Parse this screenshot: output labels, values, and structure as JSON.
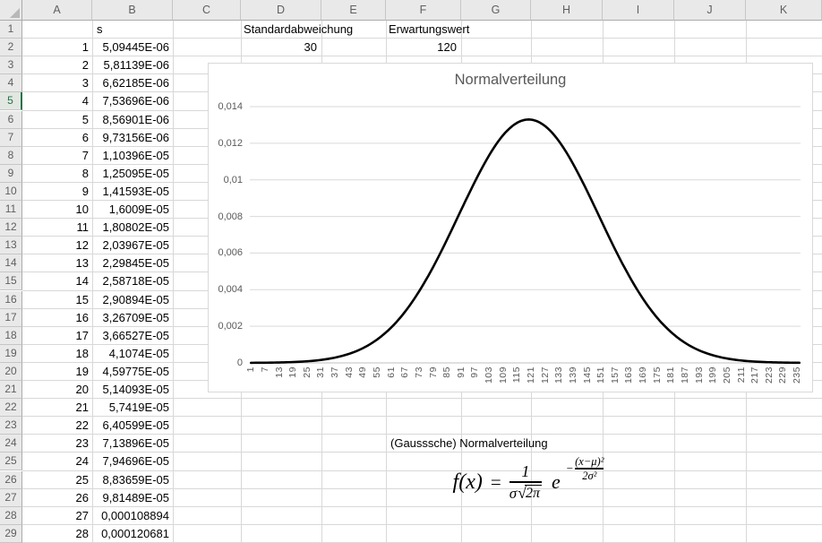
{
  "sheet": {
    "column_headers": [
      "A",
      "B",
      "C",
      "D",
      "E",
      "F",
      "G",
      "H",
      "I",
      "J",
      "K"
    ],
    "row_count": 29,
    "active_row": 5,
    "cells": {
      "b1": "s",
      "d1": "Standardabweichung",
      "d2": "30",
      "f1": "Erwartungswert",
      "f2": "120",
      "f24": "(Gausssche) Normalverteilung"
    },
    "data_rows": [
      {
        "x": "1",
        "s": "5,09445E-06"
      },
      {
        "x": "2",
        "s": "5,81139E-06"
      },
      {
        "x": "3",
        "s": "6,62185E-06"
      },
      {
        "x": "4",
        "s": "7,53696E-06"
      },
      {
        "x": "5",
        "s": "8,56901E-06"
      },
      {
        "x": "6",
        "s": "9,73156E-06"
      },
      {
        "x": "7",
        "s": "1,10396E-05"
      },
      {
        "x": "8",
        "s": "1,25095E-05"
      },
      {
        "x": "9",
        "s": "1,41593E-05"
      },
      {
        "x": "10",
        "s": "1,6009E-05"
      },
      {
        "x": "11",
        "s": "1,80802E-05"
      },
      {
        "x": "12",
        "s": "2,03967E-05"
      },
      {
        "x": "13",
        "s": "2,29845E-05"
      },
      {
        "x": "14",
        "s": "2,58718E-05"
      },
      {
        "x": "15",
        "s": "2,90894E-05"
      },
      {
        "x": "16",
        "s": "3,26709E-05"
      },
      {
        "x": "17",
        "s": "3,66527E-05"
      },
      {
        "x": "18",
        "s": "4,1074E-05"
      },
      {
        "x": "19",
        "s": "4,59775E-05"
      },
      {
        "x": "20",
        "s": "5,14093E-05"
      },
      {
        "x": "21",
        "s": "5,7419E-05"
      },
      {
        "x": "22",
        "s": "6,40599E-05"
      },
      {
        "x": "23",
        "s": "7,13896E-05"
      },
      {
        "x": "24",
        "s": "7,94696E-05"
      },
      {
        "x": "25",
        "s": "8,83659E-05"
      },
      {
        "x": "26",
        "s": "9,81489E-05"
      },
      {
        "x": "27",
        "s": "0,000108894"
      },
      {
        "x": "28",
        "s": "0,000120681"
      }
    ]
  },
  "chart_data": {
    "type": "line",
    "title": "Normalverteilung",
    "x_tick_labels": [
      "1",
      "7",
      "13",
      "19",
      "25",
      "31",
      "37",
      "43",
      "49",
      "55",
      "61",
      "67",
      "73",
      "79",
      "85",
      "91",
      "97",
      "103",
      "109",
      "115",
      "121",
      "127",
      "133",
      "139",
      "145",
      "151",
      "157",
      "163",
      "169",
      "175",
      "181",
      "187",
      "193",
      "199",
      "205",
      "211",
      "217",
      "223",
      "229",
      "235"
    ],
    "y_tick_labels": [
      "0",
      "0,002",
      "0,004",
      "0,006",
      "0,008",
      "0,01",
      "0,012",
      "0,014"
    ],
    "ylim": [
      0,
      0.014
    ],
    "x_range": [
      1,
      236
    ],
    "grid": true,
    "legend": "none",
    "series": [
      {
        "name": "Normalverteilung",
        "shape": "gaussian",
        "mu": 120,
        "sigma": 30,
        "peak_value": 0.0132981,
        "color": "#000000"
      }
    ]
  },
  "formula": {
    "lhs": "f(x)",
    "equals": "=",
    "coef_numerator": "1",
    "coef_sigma": "σ",
    "sqrt_symbol": "√",
    "coef_sqrt_radicand": "2π",
    "base": "e",
    "exp_sign": "−",
    "exp_numerator": "(x−μ)²",
    "exp_denominator": "2σ²"
  },
  "colors": {
    "accent_green": "#217346",
    "sheet_grid": "#D8D8D8",
    "chart_grid": "#D9D9D9",
    "axis_text": "#595959",
    "curve": "#000000"
  }
}
